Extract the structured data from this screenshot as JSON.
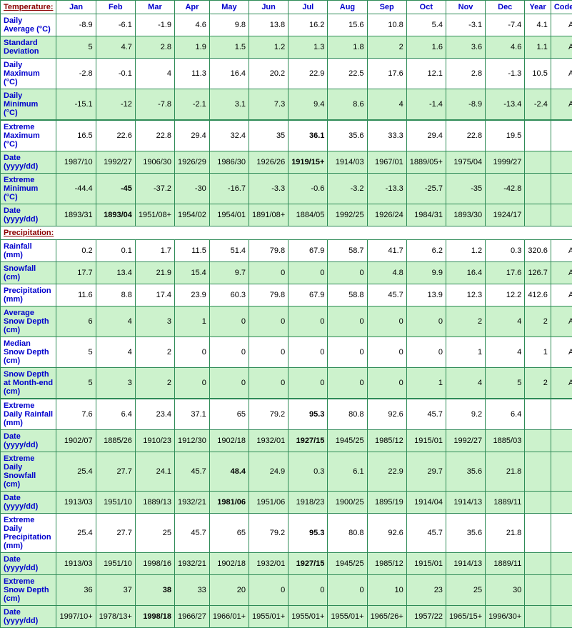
{
  "colors": {
    "border": "#2e8b57",
    "header_text": "#0000cd",
    "section_text": "#8b0000",
    "value_text": "#000000",
    "odd_bg": "#ccf2cc",
    "even_bg": "#ffffff"
  },
  "typography": {
    "font_family": "Arial, sans-serif",
    "base_size_pt": 11
  },
  "headers": [
    "Jan",
    "Feb",
    "Mar",
    "Apr",
    "May",
    "Jun",
    "Jul",
    "Aug",
    "Sep",
    "Oct",
    "Nov",
    "Dec",
    "Year",
    "Code"
  ],
  "sections": {
    "temperature": {
      "label": "Temperature:",
      "rows": [
        {
          "label": "Daily Average (°C)",
          "class": "even",
          "values": [
            "-8.9",
            "-6.1",
            "-1.9",
            "4.6",
            "9.8",
            "13.8",
            "16.2",
            "15.6",
            "10.8",
            "5.4",
            "-3.1",
            "-7.4",
            "4.1",
            "A"
          ]
        },
        {
          "label": "Standard Deviation",
          "class": "odd",
          "values": [
            "5",
            "4.7",
            "2.8",
            "1.9",
            "1.5",
            "1.2",
            "1.3",
            "1.8",
            "2",
            "1.6",
            "3.6",
            "4.6",
            "1.1",
            "A"
          ]
        },
        {
          "label": "Daily Maximum (°C)",
          "class": "even",
          "values": [
            "-2.8",
            "-0.1",
            "4",
            "11.3",
            "16.4",
            "20.2",
            "22.9",
            "22.5",
            "17.6",
            "12.1",
            "2.8",
            "-1.3",
            "10.5",
            "A"
          ]
        },
        {
          "label": "Daily Minimum (°C)",
          "class": "odd",
          "values": [
            "-15.1",
            "-12",
            "-7.8",
            "-2.1",
            "3.1",
            "7.3",
            "9.4",
            "8.6",
            "4",
            "-1.4",
            "-8.9",
            "-13.4",
            "-2.4",
            "A"
          ]
        },
        {
          "label": "Extreme Maximum (°C)",
          "class": "even thick-top",
          "values": [
            "16.5",
            "22.6",
            "22.8",
            "29.4",
            "32.4",
            "35",
            "36.1",
            "35.6",
            "33.3",
            "29.4",
            "22.8",
            "19.5",
            "",
            ""
          ],
          "bold": [
            6
          ]
        },
        {
          "label": "Date (yyyy/dd)",
          "class": "odd",
          "values": [
            "1987/10",
            "1992/27",
            "1906/30",
            "1926/29",
            "1986/30",
            "1926/26",
            "1919/15+",
            "1914/03",
            "1967/01",
            "1889/05+",
            "1975/04",
            "1999/27",
            "",
            ""
          ],
          "bold": [
            6
          ]
        },
        {
          "label": "Extreme Minimum (°C)",
          "class": "odd",
          "values": [
            "-44.4",
            "-45",
            "-37.2",
            "-30",
            "-16.7",
            "-3.3",
            "-0.6",
            "-3.2",
            "-13.3",
            "-25.7",
            "-35",
            "-42.8",
            "",
            ""
          ],
          "bold": [
            1
          ]
        },
        {
          "label": "Date (yyyy/dd)",
          "class": "odd",
          "values": [
            "1893/31",
            "1893/04",
            "1951/08+",
            "1954/02",
            "1954/01",
            "1891/08+",
            "1884/05",
            "1992/25",
            "1926/24",
            "1984/31",
            "1893/30",
            "1924/17",
            "",
            ""
          ],
          "bold": [
            1
          ]
        }
      ]
    },
    "precipitation": {
      "label": "Precipitation:",
      "rows": [
        {
          "label": "Rainfall (mm)",
          "class": "even",
          "values": [
            "0.2",
            "0.1",
            "1.7",
            "11.5",
            "51.4",
            "79.8",
            "67.9",
            "58.7",
            "41.7",
            "6.2",
            "1.2",
            "0.3",
            "320.6",
            "A"
          ]
        },
        {
          "label": "Snowfall (cm)",
          "class": "odd",
          "values": [
            "17.7",
            "13.4",
            "21.9",
            "15.4",
            "9.7",
            "0",
            "0",
            "0",
            "4.8",
            "9.9",
            "16.4",
            "17.6",
            "126.7",
            "A"
          ]
        },
        {
          "label": "Precipitation (mm)",
          "class": "even",
          "values": [
            "11.6",
            "8.8",
            "17.4",
            "23.9",
            "60.3",
            "79.8",
            "67.9",
            "58.8",
            "45.7",
            "13.9",
            "12.3",
            "12.2",
            "412.6",
            "A"
          ]
        },
        {
          "label": "Average Snow Depth (cm)",
          "class": "odd",
          "values": [
            "6",
            "4",
            "3",
            "1",
            "0",
            "0",
            "0",
            "0",
            "0",
            "0",
            "2",
            "4",
            "2",
            "A"
          ]
        },
        {
          "label": "Median Snow Depth (cm)",
          "class": "even",
          "values": [
            "5",
            "4",
            "2",
            "0",
            "0",
            "0",
            "0",
            "0",
            "0",
            "0",
            "1",
            "4",
            "1",
            "A"
          ]
        },
        {
          "label": "Snow Depth at Month-end (cm)",
          "class": "odd",
          "values": [
            "5",
            "3",
            "2",
            "0",
            "0",
            "0",
            "0",
            "0",
            "0",
            "1",
            "4",
            "5",
            "2",
            "A"
          ]
        },
        {
          "label": "Extreme Daily Rainfall (mm)",
          "class": "even thick-top",
          "values": [
            "7.6",
            "6.4",
            "23.4",
            "37.1",
            "65",
            "79.2",
            "95.3",
            "80.8",
            "92.6",
            "45.7",
            "9.2",
            "6.4",
            "",
            ""
          ],
          "bold": [
            6
          ]
        },
        {
          "label": "Date (yyyy/dd)",
          "class": "odd",
          "values": [
            "1902/07",
            "1885/26",
            "1910/23",
            "1912/30",
            "1902/18",
            "1932/01",
            "1927/15",
            "1945/25",
            "1985/12",
            "1915/01",
            "1992/27",
            "1885/03",
            "",
            ""
          ],
          "bold": [
            6
          ]
        },
        {
          "label": "Extreme Daily Snowfall (cm)",
          "class": "odd",
          "values": [
            "25.4",
            "27.7",
            "24.1",
            "45.7",
            "48.4",
            "24.9",
            "0.3",
            "6.1",
            "22.9",
            "29.7",
            "35.6",
            "21.8",
            "",
            ""
          ],
          "bold": [
            4
          ]
        },
        {
          "label": "Date (yyyy/dd)",
          "class": "odd",
          "values": [
            "1913/03",
            "1951/10",
            "1889/13",
            "1932/21",
            "1981/06",
            "1951/06",
            "1918/23",
            "1900/25",
            "1895/19",
            "1914/04",
            "1914/13",
            "1889/11",
            "",
            ""
          ],
          "bold": [
            4
          ]
        },
        {
          "label": "Extreme Daily Precipitation (mm)",
          "class": "even",
          "values": [
            "25.4",
            "27.7",
            "25",
            "45.7",
            "65",
            "79.2",
            "95.3",
            "80.8",
            "92.6",
            "45.7",
            "35.6",
            "21.8",
            "",
            ""
          ],
          "bold": [
            6
          ]
        },
        {
          "label": "Date (yyyy/dd)",
          "class": "odd",
          "values": [
            "1913/03",
            "1951/10",
            "1998/16",
            "1932/21",
            "1902/18",
            "1932/01",
            "1927/15",
            "1945/25",
            "1985/12",
            "1915/01",
            "1914/13",
            "1889/11",
            "",
            ""
          ],
          "bold": [
            6
          ]
        },
        {
          "label": "Extreme Snow Depth (cm)",
          "class": "odd",
          "values": [
            "36",
            "37",
            "38",
            "33",
            "20",
            "0",
            "0",
            "0",
            "10",
            "23",
            "25",
            "30",
            "",
            ""
          ],
          "bold": [
            2
          ]
        },
        {
          "label": "Date (yyyy/dd)",
          "class": "odd",
          "values": [
            "1997/10+",
            "1978/13+",
            "1998/18",
            "1966/27",
            "1966/01+",
            "1955/01+",
            "1955/01+",
            "1955/01+",
            "1965/26+",
            "1957/22",
            "1965/15+",
            "1996/30+",
            "",
            ""
          ],
          "bold": [
            2
          ]
        }
      ]
    }
  }
}
